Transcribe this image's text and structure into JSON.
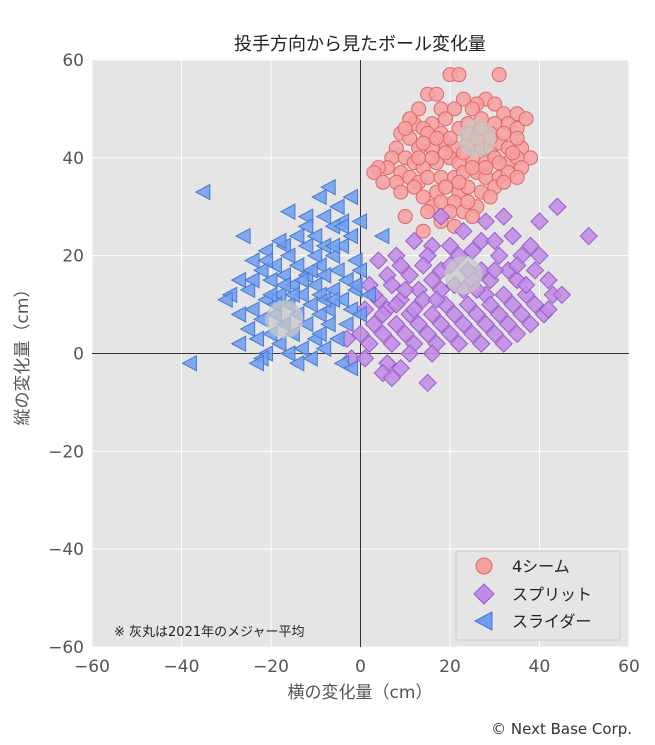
{
  "chart_data": {
    "type": "scatter",
    "title": "投手方向から見たボール変化量",
    "xlabel": "横の変化量（cm）",
    "ylabel": "縦の変化量（cm）",
    "xlim": [
      -60,
      60
    ],
    "ylim": [
      -60,
      60
    ],
    "x_ticks": [
      "−60",
      "−40",
      "−20",
      "0",
      "20",
      "40",
      "60"
    ],
    "y_ticks": [
      "−60",
      "−40",
      "−20",
      "0",
      "20",
      "40",
      "60"
    ],
    "grid": true,
    "legend_position": "bottom-right",
    "note": "※ 灰丸は2021年のメジャー平均",
    "copyright": "© Next Base Corp.",
    "averages": [
      {
        "series": "4シーム",
        "x": 26,
        "y": 44
      },
      {
        "series": "スプリット",
        "x": 23,
        "y": 16
      },
      {
        "series": "スライダー",
        "x": -17,
        "y": 7
      }
    ],
    "series": [
      {
        "name": "4シーム",
        "marker": "circle",
        "color": "#f7a0a0",
        "edge": "#e06767",
        "points": [
          [
            20,
            57
          ],
          [
            22,
            57
          ],
          [
            31,
            57
          ],
          [
            15,
            53
          ],
          [
            17,
            53
          ],
          [
            23,
            52
          ],
          [
            28,
            52
          ],
          [
            30,
            51
          ],
          [
            26,
            51
          ],
          [
            13,
            50
          ],
          [
            18,
            50
          ],
          [
            21,
            50
          ],
          [
            25,
            50
          ],
          [
            32,
            49
          ],
          [
            35,
            49
          ],
          [
            33,
            47
          ],
          [
            30,
            47
          ],
          [
            19,
            48
          ],
          [
            16,
            47
          ],
          [
            12,
            47
          ],
          [
            14,
            46
          ],
          [
            9,
            45
          ],
          [
            11,
            44
          ],
          [
            15,
            45
          ],
          [
            18,
            45
          ],
          [
            22,
            46
          ],
          [
            24,
            47
          ],
          [
            27,
            48
          ],
          [
            29,
            45
          ],
          [
            35,
            46
          ],
          [
            8,
            42
          ],
          [
            13,
            42
          ],
          [
            16,
            42
          ],
          [
            19,
            43
          ],
          [
            21,
            42
          ],
          [
            24,
            43
          ],
          [
            27,
            42
          ],
          [
            29,
            42
          ],
          [
            31,
            43
          ],
          [
            33,
            42
          ],
          [
            36,
            42
          ],
          [
            38,
            40
          ],
          [
            7,
            40
          ],
          [
            10,
            40
          ],
          [
            12,
            39
          ],
          [
            14,
            38
          ],
          [
            17,
            39
          ],
          [
            20,
            40
          ],
          [
            22,
            39
          ],
          [
            25,
            40
          ],
          [
            28,
            39
          ],
          [
            30,
            40
          ],
          [
            33,
            39
          ],
          [
            35,
            40
          ],
          [
            6,
            38
          ],
          [
            9,
            37
          ],
          [
            11,
            36
          ],
          [
            13,
            35
          ],
          [
            15,
            36
          ],
          [
            18,
            36
          ],
          [
            21,
            36
          ],
          [
            23,
            37
          ],
          [
            26,
            37
          ],
          [
            28,
            36
          ],
          [
            31,
            36
          ],
          [
            33,
            37
          ],
          [
            4,
            38
          ],
          [
            8,
            35
          ],
          [
            12,
            34
          ],
          [
            14,
            32
          ],
          [
            17,
            33
          ],
          [
            19,
            34
          ],
          [
            22,
            33
          ],
          [
            24,
            34
          ],
          [
            27,
            33
          ],
          [
            30,
            34
          ],
          [
            16,
            30
          ],
          [
            18,
            31
          ],
          [
            21,
            31
          ],
          [
            26,
            30
          ],
          [
            10,
            28
          ],
          [
            15,
            29
          ],
          [
            20,
            29
          ],
          [
            23,
            29
          ],
          [
            25,
            28
          ],
          [
            18,
            27
          ],
          [
            21,
            26
          ],
          [
            14,
            25
          ],
          [
            35,
            44
          ],
          [
            37,
            48
          ],
          [
            32,
            45
          ],
          [
            11,
            48
          ],
          [
            10,
            46
          ],
          [
            24,
            45
          ],
          [
            26,
            44
          ],
          [
            27,
            46
          ],
          [
            29,
            44
          ],
          [
            20,
            44
          ],
          [
            17,
            44
          ],
          [
            14,
            43
          ],
          [
            23,
            41
          ],
          [
            19,
            41
          ],
          [
            25,
            38
          ],
          [
            31,
            39
          ],
          [
            34,
            41
          ],
          [
            36,
            38
          ],
          [
            3,
            37
          ],
          [
            5,
            35
          ],
          [
            9,
            33
          ],
          [
            28,
            38
          ],
          [
            32,
            35
          ],
          [
            35,
            36
          ],
          [
            13,
            40
          ],
          [
            16,
            40
          ],
          [
            22,
            35
          ],
          [
            29,
            32
          ],
          [
            24,
            31
          ]
        ]
      },
      {
        "name": "スプリット",
        "marker": "diamond",
        "color": "#c189e8",
        "edge": "#9a5bc9",
        "points": [
          [
            44,
            30
          ],
          [
            51,
            24
          ],
          [
            40,
            27
          ],
          [
            32,
            28
          ],
          [
            28,
            27
          ],
          [
            18,
            28
          ],
          [
            23,
            25
          ],
          [
            34,
            24
          ],
          [
            27,
            23
          ],
          [
            30,
            23
          ],
          [
            16,
            22
          ],
          [
            20,
            22
          ],
          [
            25,
            21
          ],
          [
            38,
            22
          ],
          [
            12,
            23
          ],
          [
            8,
            20
          ],
          [
            15,
            20
          ],
          [
            22,
            20
          ],
          [
            31,
            20
          ],
          [
            36,
            20
          ],
          [
            4,
            19
          ],
          [
            9,
            18
          ],
          [
            14,
            18
          ],
          [
            18,
            17
          ],
          [
            27,
            17
          ],
          [
            33,
            17
          ],
          [
            39,
            17
          ],
          [
            6,
            16
          ],
          [
            11,
            16
          ],
          [
            16,
            15
          ],
          [
            21,
            14
          ],
          [
            25,
            15
          ],
          [
            29,
            15
          ],
          [
            35,
            15
          ],
          [
            42,
            15
          ],
          [
            2,
            14
          ],
          [
            7,
            14
          ],
          [
            13,
            13
          ],
          [
            18,
            13
          ],
          [
            23,
            13
          ],
          [
            28,
            12
          ],
          [
            32,
            12
          ],
          [
            37,
            12
          ],
          [
            43,
            12
          ],
          [
            4,
            11
          ],
          [
            9,
            11
          ],
          [
            14,
            11
          ],
          [
            19,
            10
          ],
          [
            24,
            10
          ],
          [
            29,
            10
          ],
          [
            34,
            10
          ],
          [
            39,
            10
          ],
          [
            1,
            9
          ],
          [
            6,
            9
          ],
          [
            11,
            8
          ],
          [
            16,
            8
          ],
          [
            21,
            8
          ],
          [
            26,
            8
          ],
          [
            31,
            8
          ],
          [
            36,
            8
          ],
          [
            41,
            8
          ],
          [
            3,
            6
          ],
          [
            8,
            6
          ],
          [
            13,
            6
          ],
          [
            18,
            6
          ],
          [
            23,
            6
          ],
          [
            28,
            6
          ],
          [
            33,
            6
          ],
          [
            38,
            6
          ],
          [
            0,
            4
          ],
          [
            5,
            4
          ],
          [
            10,
            4
          ],
          [
            15,
            4
          ],
          [
            20,
            4
          ],
          [
            25,
            4
          ],
          [
            30,
            4
          ],
          [
            35,
            4
          ],
          [
            2,
            2
          ],
          [
            7,
            2
          ],
          [
            12,
            2
          ],
          [
            17,
            2
          ],
          [
            22,
            2
          ],
          [
            27,
            2
          ],
          [
            32,
            2
          ],
          [
            -3,
            3
          ],
          [
            -2,
            -1
          ],
          [
            1,
            -1
          ],
          [
            6,
            -2
          ],
          [
            11,
            0
          ],
          [
            16,
            0
          ],
          [
            5,
            -4
          ],
          [
            7,
            -5
          ],
          [
            15,
            -6
          ],
          [
            9,
            -3
          ],
          [
            26,
            13
          ],
          [
            30,
            17
          ],
          [
            20,
            18
          ],
          [
            10,
            13
          ],
          [
            5,
            8
          ],
          [
            40,
            20
          ],
          [
            35,
            18
          ],
          [
            45,
            12
          ],
          [
            42,
            9
          ],
          [
            24,
            17
          ],
          [
            17,
            11
          ],
          [
            12,
            9
          ],
          [
            8,
            10
          ],
          [
            3,
            12
          ],
          [
            37,
            14
          ]
        ]
      },
      {
        "name": "スライダー",
        "marker": "triangle-left",
        "color": "#6e9ef0",
        "edge": "#4878d0",
        "points": [
          [
            -35,
            33
          ],
          [
            -7,
            34
          ],
          [
            -9,
            32
          ],
          [
            -2,
            32
          ],
          [
            -5,
            30
          ],
          [
            -16,
            29
          ],
          [
            -12,
            28
          ],
          [
            -8,
            28
          ],
          [
            -4,
            27
          ],
          [
            0,
            27
          ],
          [
            -6,
            26
          ],
          [
            -10,
            24
          ],
          [
            -14,
            24
          ],
          [
            -26,
            24
          ],
          [
            -17,
            22
          ],
          [
            -12,
            22
          ],
          [
            -8,
            22
          ],
          [
            -4,
            22
          ],
          [
            5,
            24
          ],
          [
            -21,
            21
          ],
          [
            -16,
            20
          ],
          [
            -10,
            20
          ],
          [
            -6,
            20
          ],
          [
            -1,
            19
          ],
          [
            -24,
            19
          ],
          [
            -19,
            18
          ],
          [
            -14,
            18
          ],
          [
            -9,
            18
          ],
          [
            -5,
            17
          ],
          [
            0,
            17
          ],
          [
            -22,
            17
          ],
          [
            -17,
            16
          ],
          [
            -12,
            16
          ],
          [
            -8,
            16
          ],
          [
            -3,
            15
          ],
          [
            -27,
            15
          ],
          [
            -20,
            15
          ],
          [
            -15,
            14
          ],
          [
            -10,
            14
          ],
          [
            -6,
            13
          ],
          [
            -1,
            13
          ],
          [
            -25,
            13
          ],
          [
            -18,
            12
          ],
          [
            -13,
            12
          ],
          [
            -9,
            12
          ],
          [
            -4,
            11
          ],
          [
            -29,
            12
          ],
          [
            -21,
            11
          ],
          [
            -16,
            10
          ],
          [
            -11,
            10
          ],
          [
            -7,
            9
          ],
          [
            -2,
            9
          ],
          [
            -24,
            9
          ],
          [
            -19,
            8
          ],
          [
            -14,
            8
          ],
          [
            -9,
            8
          ],
          [
            -27,
            8
          ],
          [
            -22,
            7
          ],
          [
            -17,
            6
          ],
          [
            -12,
            6
          ],
          [
            -7,
            6
          ],
          [
            -25,
            5
          ],
          [
            -20,
            4
          ],
          [
            -15,
            4
          ],
          [
            -10,
            3
          ],
          [
            -5,
            3
          ],
          [
            -23,
            3
          ],
          [
            -18,
            2
          ],
          [
            -13,
            1
          ],
          [
            -8,
            1
          ],
          [
            -21,
            0
          ],
          [
            -16,
            0
          ],
          [
            -11,
            -1
          ],
          [
            -22,
            -1
          ],
          [
            -27,
            2
          ],
          [
            -38,
            -2
          ],
          [
            -23,
            -2
          ],
          [
            -14,
            -2
          ],
          [
            -4,
            -2
          ],
          [
            -2,
            -3
          ],
          [
            -30,
            11
          ],
          [
            -8,
            11
          ],
          [
            0,
            8
          ],
          [
            2,
            12
          ],
          [
            -4,
            26
          ],
          [
            -12,
            26
          ],
          [
            -18,
            23
          ],
          [
            -21,
            19
          ],
          [
            -2,
            24
          ],
          [
            -6,
            11
          ],
          [
            -11,
            17
          ],
          [
            -15,
            12
          ],
          [
            -19,
            10
          ],
          [
            -3,
            6
          ],
          [
            -1,
            14
          ],
          [
            -9,
            4
          ],
          [
            -13,
            15
          ],
          [
            -17,
            14
          ],
          [
            -6,
            22
          ],
          [
            -24,
            15
          ],
          [
            -20,
            12
          ]
        ]
      }
    ]
  }
}
